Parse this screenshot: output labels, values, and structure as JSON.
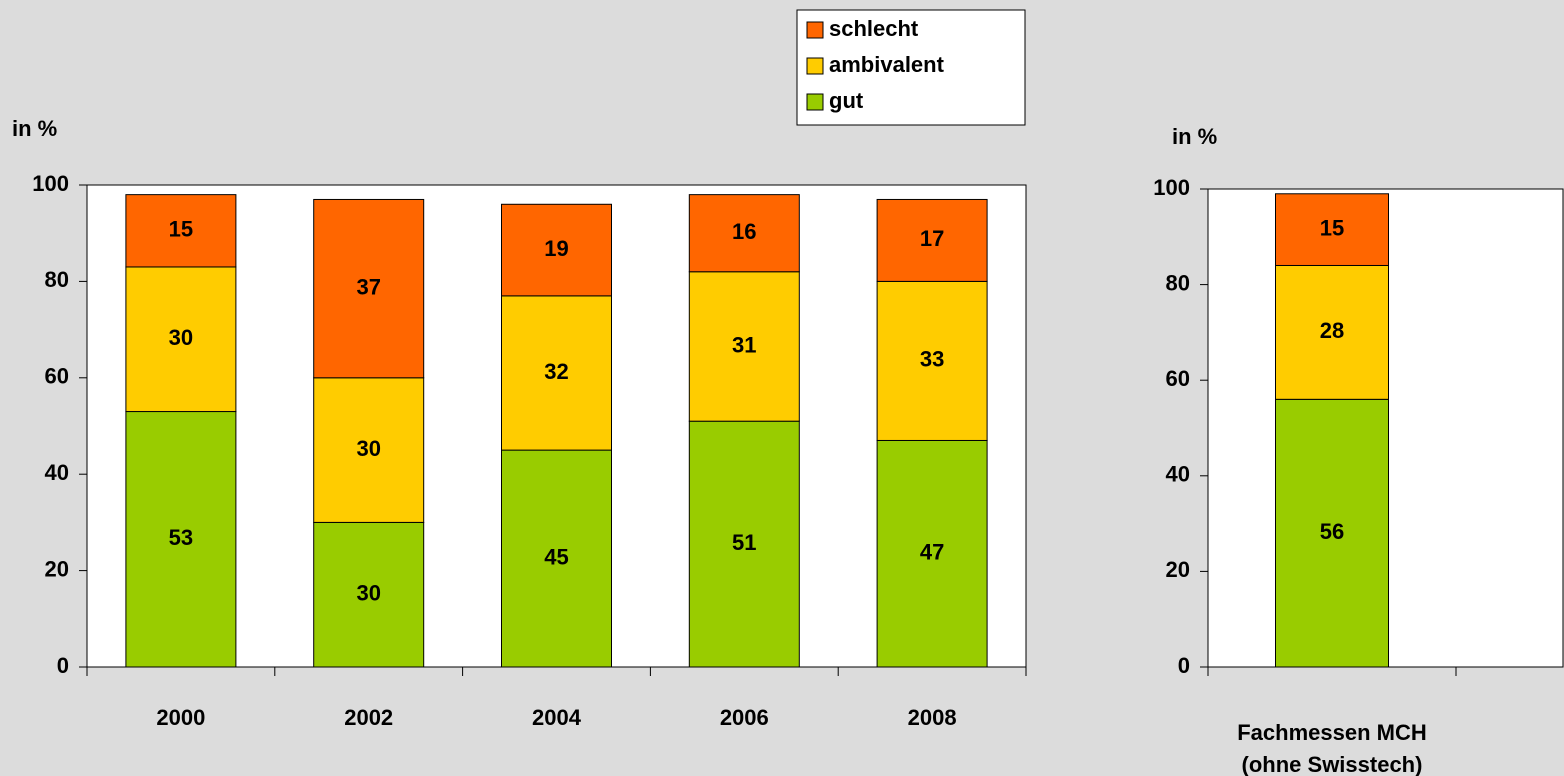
{
  "chart_data": [
    {
      "type": "stacked_bar",
      "ylabel": "in %",
      "categories": [
        "2000",
        "2002",
        "2004",
        "2006",
        "2008"
      ],
      "series": [
        {
          "name": "gut",
          "color": "#99cc00",
          "values": [
            53,
            30,
            45,
            51,
            47
          ]
        },
        {
          "name": "ambivalent",
          "color": "#ffcc00",
          "values": [
            30,
            30,
            32,
            31,
            33
          ]
        },
        {
          "name": "schlecht",
          "color": "#ff6600",
          "values": [
            15,
            37,
            19,
            16,
            17
          ]
        }
      ],
      "ylim": [
        0,
        100
      ],
      "yticks": [
        0,
        20,
        40,
        60,
        80,
        100
      ],
      "legend": "top-right"
    },
    {
      "type": "stacked_bar",
      "ylabel": "in %",
      "categories": [
        "Fachmessen MCH\n(ohne Swisstech)"
      ],
      "series": [
        {
          "color": "#99cc00",
          "values": [
            56
          ]
        },
        {
          "color": "#ffcc00",
          "values": [
            28
          ]
        },
        {
          "color": "#ff6600",
          "values": [
            15
          ]
        }
      ],
      "ylim": [
        0,
        100
      ],
      "yticks": [
        0,
        20,
        40,
        60,
        80,
        100
      ]
    }
  ]
}
